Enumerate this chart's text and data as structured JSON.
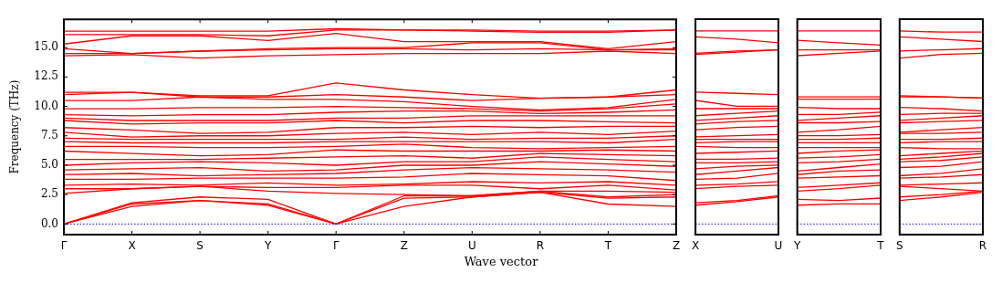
{
  "chart_data": [
    {
      "type": "line",
      "ylabel": "Frequency (THz)",
      "xlabel": "Wave vector",
      "marker": "none",
      "line_style": "solid",
      "categories": [
        "Γ",
        "X",
        "S",
        "Y",
        "Γ",
        "Z",
        "U",
        "R",
        "T",
        "Z"
      ],
      "ylim": [
        -0.9,
        17.4
      ],
      "yticks": [
        {
          "value": 0,
          "label": "0.0"
        },
        {
          "value": 2.5,
          "label": "2.5"
        },
        {
          "value": 5,
          "label": "5.0"
        },
        {
          "value": 7.5,
          "label": "7.5"
        },
        {
          "value": 10,
          "label": "10.0"
        },
        {
          "value": 12.5,
          "label": "12.5"
        },
        {
          "value": 15,
          "label": "15.0"
        }
      ],
      "ref_lines": [
        {
          "axis": "y",
          "value": 0,
          "color": "#0000ff",
          "line_style": "dotted"
        }
      ],
      "series": [
        {
          "color": "#ff0000",
          "values": [
            0,
            1.5,
            2.0,
            1.6,
            0,
            1.5,
            2.3,
            2.7,
            1.7,
            1.5
          ]
        },
        {
          "color": "#ff0000",
          "values": [
            0,
            1.7,
            2.0,
            1.7,
            0,
            2.2,
            2.3,
            2.7,
            2.2,
            2.3
          ]
        },
        {
          "color": "#ff0000",
          "values": [
            0,
            1.8,
            2.3,
            2.1,
            0,
            2.4,
            2.4,
            2.8,
            2.3,
            2.5
          ]
        },
        {
          "color": "#ff0000",
          "values": [
            2.6,
            3.0,
            3.2,
            2.8,
            2.6,
            2.5,
            2.4,
            2.8,
            2.8,
            2.7
          ]
        },
        {
          "color": "#ff0000",
          "values": [
            3.0,
            3.0,
            3.2,
            3.1,
            3.1,
            3.3,
            3.3,
            3.0,
            3.3,
            2.9
          ]
        },
        {
          "color": "#ff0000",
          "values": [
            3.3,
            3.4,
            3.3,
            3.5,
            3.3,
            3.4,
            3.6,
            3.5,
            3.6,
            3.3
          ]
        },
        {
          "color": "#ff0000",
          "values": [
            3.8,
            3.8,
            3.9,
            3.9,
            3.9,
            4.0,
            4.3,
            4.2,
            4.1,
            3.7
          ]
        },
        {
          "color": "#ff0000",
          "values": [
            4.2,
            4.3,
            4.1,
            4.2,
            4.3,
            4.6,
            4.8,
            4.7,
            4.6,
            4.4
          ]
        },
        {
          "color": "#ff0000",
          "values": [
            4.6,
            4.7,
            4.8,
            4.5,
            4.6,
            5.0,
            5.0,
            5.3,
            5.1,
            4.9
          ]
        },
        {
          "color": "#ff0000",
          "values": [
            5.0,
            5.2,
            5.3,
            5.2,
            5.0,
            5.3,
            5.3,
            5.7,
            5.5,
            5.3
          ]
        },
        {
          "color": "#ff0000",
          "values": [
            5.5,
            5.5,
            5.5,
            5.6,
            5.7,
            5.8,
            5.6,
            6.0,
            5.9,
            5.8
          ]
        },
        {
          "color": "#ff0000",
          "values": [
            6.2,
            6.0,
            5.8,
            5.9,
            6.3,
            6.2,
            6.2,
            6.2,
            6.3,
            6.2
          ]
        },
        {
          "color": "#ff0000",
          "values": [
            6.6,
            6.6,
            6.5,
            6.5,
            6.6,
            6.8,
            6.5,
            6.4,
            6.5,
            6.6
          ]
        },
        {
          "color": "#ff0000",
          "values": [
            7.0,
            6.9,
            6.9,
            6.9,
            7.0,
            7.0,
            7.0,
            7.0,
            6.9,
            7.2
          ]
        },
        {
          "color": "#ff0000",
          "values": [
            7.3,
            7.2,
            7.2,
            7.2,
            7.2,
            7.4,
            7.2,
            7.3,
            7.3,
            7.5
          ]
        },
        {
          "color": "#ff0000",
          "values": [
            7.8,
            7.4,
            7.5,
            7.5,
            7.7,
            7.8,
            7.6,
            7.8,
            7.6,
            7.9
          ]
        },
        {
          "color": "#ff0000",
          "values": [
            8.2,
            8.0,
            7.7,
            7.8,
            8.2,
            8.2,
            8.3,
            8.2,
            8.3,
            8.3
          ]
        },
        {
          "color": "#ff0000",
          "values": [
            8.8,
            8.5,
            8.6,
            8.6,
            8.8,
            8.6,
            8.8,
            8.8,
            8.7,
            8.6
          ]
        },
        {
          "color": "#ff0000",
          "values": [
            9.0,
            8.8,
            8.8,
            8.8,
            9.0,
            9.0,
            9.2,
            9.2,
            9.2,
            9.2
          ]
        },
        {
          "color": "#ff0000",
          "values": [
            9.3,
            9.2,
            9.3,
            9.3,
            9.5,
            9.6,
            9.6,
            9.4,
            9.5,
            9.7
          ]
        },
        {
          "color": "#ff0000",
          "values": [
            9.8,
            9.8,
            9.9,
            9.9,
            10.0,
            9.9,
            9.8,
            9.6,
            9.8,
            10.2
          ]
        },
        {
          "color": "#ff0000",
          "values": [
            10.5,
            10.5,
            10.8,
            10.6,
            10.6,
            10.4,
            10.0,
            9.7,
            9.9,
            10.6
          ]
        },
        {
          "color": "#ff0000",
          "values": [
            11.0,
            11.2,
            10.8,
            10.8,
            11.0,
            10.8,
            10.5,
            10.7,
            10.8,
            11.0
          ]
        },
        {
          "color": "#ff0000",
          "values": [
            11.2,
            11.2,
            10.9,
            10.9,
            12.0,
            11.4,
            11.0,
            10.7,
            10.8,
            11.4
          ]
        },
        {
          "color": "#ff0000",
          "values": [
            14.3,
            14.4,
            14.1,
            14.3,
            14.4,
            14.5,
            14.5,
            14.5,
            14.7,
            14.5
          ]
        },
        {
          "color": "#ff0000",
          "values": [
            14.5,
            14.5,
            14.7,
            14.8,
            14.9,
            14.9,
            14.8,
            14.9,
            14.8,
            14.8
          ]
        },
        {
          "color": "#ff0000",
          "values": [
            14.9,
            14.5,
            14.7,
            14.9,
            15.0,
            15.0,
            15.4,
            15.4,
            14.8,
            14.9
          ]
        },
        {
          "color": "#ff0000",
          "values": [
            15.3,
            16.0,
            16.0,
            15.6,
            16.2,
            15.5,
            15.5,
            15.5,
            14.9,
            15.5
          ]
        },
        {
          "color": "#ff0000",
          "values": [
            16.1,
            16.1,
            16.1,
            16.0,
            16.5,
            16.5,
            16.4,
            16.3,
            16.3,
            16.5
          ]
        },
        {
          "color": "#ff0000",
          "values": [
            16.4,
            16.4,
            16.4,
            16.4,
            16.6,
            16.5,
            16.5,
            16.4,
            16.4,
            16.5
          ]
        }
      ]
    },
    {
      "type": "line",
      "marker": "none",
      "line_style": "solid",
      "tick_labels": "x",
      "categories": [
        "X",
        null,
        "U"
      ],
      "ylim": [
        -0.9,
        17.4
      ],
      "ref_lines": [
        {
          "axis": "y",
          "value": 0,
          "color": "#0000ff",
          "line_style": "dotted"
        }
      ],
      "series": [
        {
          "color": "#ff0000",
          "values": [
            1.6,
            1.9,
            2.3
          ]
        },
        {
          "color": "#ff0000",
          "values": [
            1.8,
            2.0,
            2.4
          ]
        },
        {
          "color": "#ff0000",
          "values": [
            3.0,
            3.2,
            3.3
          ]
        },
        {
          "color": "#ff0000",
          "values": [
            3.3,
            3.4,
            3.6
          ]
        },
        {
          "color": "#ff0000",
          "values": [
            3.8,
            3.9,
            4.3
          ]
        },
        {
          "color": "#ff0000",
          "values": [
            4.2,
            4.5,
            4.8
          ]
        },
        {
          "color": "#ff0000",
          "values": [
            4.7,
            4.9,
            5.0
          ]
        },
        {
          "color": "#ff0000",
          "values": [
            5.2,
            5.2,
            5.3
          ]
        },
        {
          "color": "#ff0000",
          "values": [
            5.5,
            5.5,
            5.6
          ]
        },
        {
          "color": "#ff0000",
          "values": [
            6.0,
            6.1,
            6.2
          ]
        },
        {
          "color": "#ff0000",
          "values": [
            6.6,
            6.5,
            6.5
          ]
        },
        {
          "color": "#ff0000",
          "values": [
            6.9,
            7.0,
            7.0
          ]
        },
        {
          "color": "#ff0000",
          "values": [
            7.2,
            7.2,
            7.2
          ]
        },
        {
          "color": "#ff0000",
          "values": [
            7.4,
            7.5,
            7.6
          ]
        },
        {
          "color": "#ff0000",
          "values": [
            8.0,
            8.2,
            8.3
          ]
        },
        {
          "color": "#ff0000",
          "values": [
            8.5,
            8.7,
            8.8
          ]
        },
        {
          "color": "#ff0000",
          "values": [
            8.8,
            9.0,
            9.2
          ]
        },
        {
          "color": "#ff0000",
          "values": [
            9.2,
            9.4,
            9.6
          ]
        },
        {
          "color": "#ff0000",
          "values": [
            9.8,
            9.8,
            9.8
          ]
        },
        {
          "color": "#ff0000",
          "values": [
            10.5,
            10.0,
            10.0
          ]
        },
        {
          "color": "#ff0000",
          "values": [
            11.2,
            11.1,
            11.0
          ]
        },
        {
          "color": "#ff0000",
          "values": [
            14.4,
            14.6,
            14.8
          ]
        },
        {
          "color": "#ff0000",
          "values": [
            14.5,
            14.7,
            14.8
          ]
        },
        {
          "color": "#ff0000",
          "values": [
            15.9,
            15.7,
            15.4
          ]
        },
        {
          "color": "#ff0000",
          "values": [
            16.4,
            16.4,
            16.4
          ]
        }
      ]
    },
    {
      "type": "line",
      "marker": "none",
      "line_style": "solid",
      "tick_labels": "x",
      "categories": [
        "Y",
        null,
        "T"
      ],
      "ylim": [
        -0.9,
        17.4
      ],
      "ref_lines": [
        {
          "axis": "y",
          "value": 0,
          "color": "#0000ff",
          "line_style": "dotted"
        }
      ],
      "series": [
        {
          "color": "#ff0000",
          "values": [
            1.6,
            1.7,
            1.7
          ]
        },
        {
          "color": "#ff0000",
          "values": [
            2.1,
            2.0,
            2.2
          ]
        },
        {
          "color": "#ff0000",
          "values": [
            2.8,
            3.0,
            3.3
          ]
        },
        {
          "color": "#ff0000",
          "values": [
            3.1,
            3.3,
            3.5
          ]
        },
        {
          "color": "#ff0000",
          "values": [
            3.9,
            4.0,
            4.1
          ]
        },
        {
          "color": "#ff0000",
          "values": [
            4.2,
            4.5,
            4.6
          ]
        },
        {
          "color": "#ff0000",
          "values": [
            4.5,
            4.8,
            5.1
          ]
        },
        {
          "color": "#ff0000",
          "values": [
            5.2,
            5.3,
            5.5
          ]
        },
        {
          "color": "#ff0000",
          "values": [
            5.6,
            5.7,
            5.9
          ]
        },
        {
          "color": "#ff0000",
          "values": [
            6.0,
            6.2,
            6.3
          ]
        },
        {
          "color": "#ff0000",
          "values": [
            6.5,
            6.5,
            6.5
          ]
        },
        {
          "color": "#ff0000",
          "values": [
            6.9,
            6.9,
            6.9
          ]
        },
        {
          "color": "#ff0000",
          "values": [
            7.2,
            7.2,
            7.3
          ]
        },
        {
          "color": "#ff0000",
          "values": [
            7.5,
            7.5,
            7.6
          ]
        },
        {
          "color": "#ff0000",
          "values": [
            7.8,
            8.0,
            8.3
          ]
        },
        {
          "color": "#ff0000",
          "values": [
            8.6,
            8.6,
            8.7
          ]
        },
        {
          "color": "#ff0000",
          "values": [
            8.8,
            9.0,
            9.2
          ]
        },
        {
          "color": "#ff0000",
          "values": [
            9.3,
            9.3,
            9.5
          ]
        },
        {
          "color": "#ff0000",
          "values": [
            9.9,
            9.8,
            9.8
          ]
        },
        {
          "color": "#ff0000",
          "values": [
            10.6,
            10.6,
            10.6
          ]
        },
        {
          "color": "#ff0000",
          "values": [
            10.8,
            10.8,
            10.8
          ]
        },
        {
          "color": "#ff0000",
          "values": [
            14.3,
            14.5,
            14.7
          ]
        },
        {
          "color": "#ff0000",
          "values": [
            14.8,
            14.8,
            14.8
          ]
        },
        {
          "color": "#ff0000",
          "values": [
            15.6,
            15.4,
            15.2
          ]
        },
        {
          "color": "#ff0000",
          "values": [
            16.4,
            16.4,
            16.4
          ]
        }
      ]
    },
    {
      "type": "line",
      "marker": "none",
      "line_style": "solid",
      "tick_labels": "x",
      "categories": [
        "S",
        null,
        "R"
      ],
      "ylim": [
        -0.9,
        17.4
      ],
      "ref_lines": [
        {
          "axis": "y",
          "value": 0,
          "color": "#0000ff",
          "line_style": "dotted"
        }
      ],
      "series": [
        {
          "color": "#ff0000",
          "values": [
            2.0,
            2.3,
            2.7
          ]
        },
        {
          "color": "#ff0000",
          "values": [
            2.3,
            2.5,
            2.8
          ]
        },
        {
          "color": "#ff0000",
          "values": [
            3.2,
            3.0,
            2.8
          ]
        },
        {
          "color": "#ff0000",
          "values": [
            3.3,
            3.4,
            3.5
          ]
        },
        {
          "color": "#ff0000",
          "values": [
            3.9,
            4.0,
            4.2
          ]
        },
        {
          "color": "#ff0000",
          "values": [
            4.1,
            4.3,
            4.7
          ]
        },
        {
          "color": "#ff0000",
          "values": [
            4.8,
            4.9,
            5.3
          ]
        },
        {
          "color": "#ff0000",
          "values": [
            5.3,
            5.4,
            5.7
          ]
        },
        {
          "color": "#ff0000",
          "values": [
            5.5,
            5.7,
            6.0
          ]
        },
        {
          "color": "#ff0000",
          "values": [
            5.8,
            6.0,
            6.2
          ]
        },
        {
          "color": "#ff0000",
          "values": [
            6.5,
            6.4,
            6.4
          ]
        },
        {
          "color": "#ff0000",
          "values": [
            6.9,
            7.0,
            7.0
          ]
        },
        {
          "color": "#ff0000",
          "values": [
            7.2,
            7.2,
            7.3
          ]
        },
        {
          "color": "#ff0000",
          "values": [
            7.7,
            7.7,
            7.8
          ]
        },
        {
          "color": "#ff0000",
          "values": [
            7.8,
            8.0,
            8.2
          ]
        },
        {
          "color": "#ff0000",
          "values": [
            8.6,
            8.7,
            8.8
          ]
        },
        {
          "color": "#ff0000",
          "values": [
            8.8,
            9.0,
            9.2
          ]
        },
        {
          "color": "#ff0000",
          "values": [
            9.3,
            9.4,
            9.4
          ]
        },
        {
          "color": "#ff0000",
          "values": [
            9.9,
            9.8,
            9.6
          ]
        },
        {
          "color": "#ff0000",
          "values": [
            10.8,
            10.8,
            10.7
          ]
        },
        {
          "color": "#ff0000",
          "values": [
            10.9,
            10.8,
            10.7
          ]
        },
        {
          "color": "#ff0000",
          "values": [
            14.1,
            14.4,
            14.5
          ]
        },
        {
          "color": "#ff0000",
          "values": [
            14.7,
            14.8,
            14.9
          ]
        },
        {
          "color": "#ff0000",
          "values": [
            15.9,
            15.7,
            15.5
          ]
        },
        {
          "color": "#ff0000",
          "values": [
            16.4,
            16.3,
            16.3
          ]
        }
      ]
    }
  ]
}
